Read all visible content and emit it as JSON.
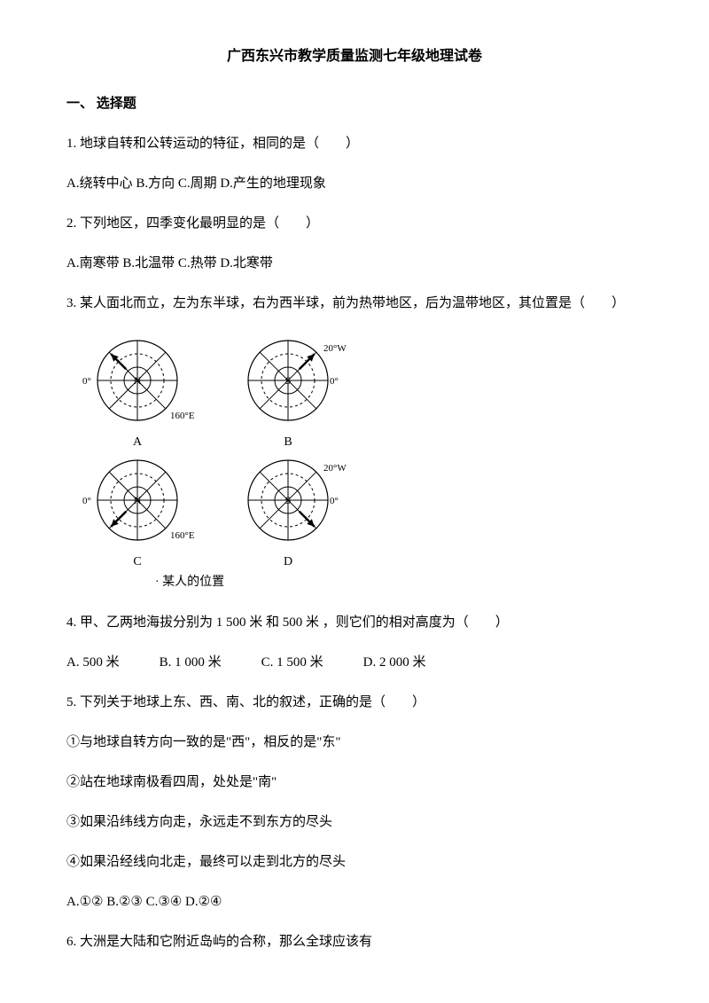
{
  "title": "广西东兴市教学质量监测七年级地理试卷",
  "section1": {
    "heading": "一、 选择题",
    "q1": {
      "stem": "1. 地球自转和公转运动的特征，相同的是（　　）",
      "options": "A.绕转中心 B.方向 C.周期 D.产生的地理现象"
    },
    "q2": {
      "stem": "2. 下列地区，四季变化最明显的是（　　）",
      "options": "A.南寒带 B.北温带 C.热带 D.北寒带"
    },
    "q3": {
      "stem": "3. 某人面北而立，左为东半球，右为西半球，前为热带地区，后为温带地区，其位置是（　　）"
    },
    "diagram": {
      "globes": [
        {
          "center": "N",
          "leftLabel": "0°",
          "rightLabel": "160°E",
          "letter": "A",
          "arrowDeg": 135
        },
        {
          "center": "S",
          "leftLabel": "",
          "rightLabel": "0°",
          "topRightLabel": "20°W",
          "letter": "B",
          "arrowDeg": 45
        },
        {
          "center": "N",
          "leftLabel": "0°",
          "rightLabel": "160°E",
          "letter": "C",
          "arrowDeg": 225
        },
        {
          "center": "S",
          "leftLabel": "",
          "rightLabel": "0°",
          "topRightLabel": "20°W",
          "letter": "D",
          "arrowDeg": 315
        }
      ],
      "caption": "· 某人的位置",
      "styling": {
        "circle_radius": 45,
        "inner_circle_radius": 30,
        "inner_circle_radius2": 15,
        "stroke_color": "#000000",
        "dash_pattern": "3,3",
        "font_size": 11
      }
    },
    "q4": {
      "stem": "4. 甲、乙两地海拔分别为 1 500 米 和 500 米 ，则它们的相对高度为（　　）",
      "optA": "A. 500 米",
      "optB": "B. 1 000 米",
      "optC": "C. 1 500 米",
      "optD": "D. 2 000 米"
    },
    "q5": {
      "stem": "5. 下列关于地球上东、西、南、北的叙述，正确的是（　　）",
      "s1": "①与地球自转方向一致的是\"西\"，相反的是\"东\"",
      "s2": "②站在地球南极看四周，处处是\"南\"",
      "s3": "③如果沿纬线方向走，永远走不到东方的尽头",
      "s4": "④如果沿经线向北走，最终可以走到北方的尽头",
      "options": "A.①② B.②③ C.③④ D.②④"
    },
    "q6": {
      "stem": "6. 大洲是大陆和它附近岛屿的合称，那么全球应该有"
    }
  }
}
